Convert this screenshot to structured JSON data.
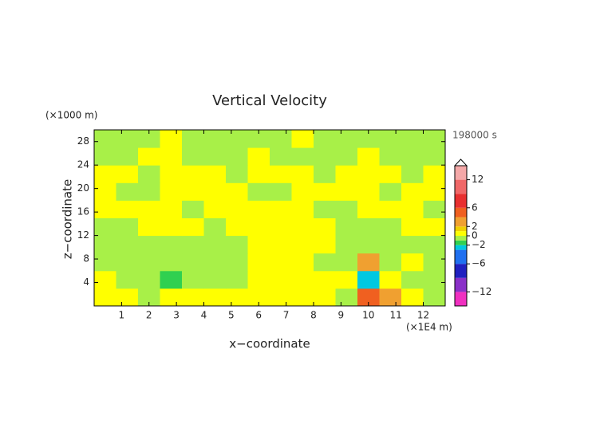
{
  "chart_data": {
    "type": "heatmap",
    "title": "Vertical Velocity",
    "x_label": "x−coordinate",
    "y_label": "z−coordinate",
    "x_unit": "(×1E4 m)",
    "y_unit": "(×1000 m)",
    "time_label": "198000 s",
    "xlim": [
      0,
      12.8
    ],
    "ylim": [
      0,
      30
    ],
    "xticks": [
      1,
      2,
      3,
      4,
      5,
      6,
      7,
      8,
      9,
      10,
      11,
      12
    ],
    "yticks": [
      4,
      8,
      12,
      16,
      20,
      24,
      28
    ],
    "x": [
      0.4,
      1.2,
      2.0,
      2.8,
      3.6,
      4.4,
      5.2,
      6.0,
      6.8,
      7.6,
      8.4,
      9.2,
      10.0,
      10.8,
      11.6,
      12.4
    ],
    "y": [
      1.5,
      4.5,
      7.5,
      10.5,
      13.5,
      16.5,
      19.5,
      22.5,
      25.5,
      28.5
    ],
    "z": [
      [
        0.5,
        0.5,
        -0.5,
        0.5,
        0.5,
        0.5,
        0.5,
        0.5,
        0.5,
        0.5,
        0.5,
        -0.5,
        4,
        2,
        0.5,
        -0.5
      ],
      [
        0.5,
        -0.5,
        -0.5,
        -2,
        -0.5,
        -0.5,
        -0.5,
        0.5,
        0.5,
        0.5,
        0.5,
        0.5,
        -3,
        0.5,
        -0.5,
        -0.5
      ],
      [
        -0.5,
        -0.5,
        -0.5,
        -0.5,
        -0.5,
        -0.5,
        -0.5,
        0.5,
        0.5,
        0.5,
        -0.5,
        -0.5,
        3,
        -0.5,
        0.5,
        -0.5
      ],
      [
        -0.5,
        -0.5,
        -0.5,
        -0.5,
        -0.5,
        -0.5,
        -0.5,
        0.5,
        0.5,
        0.5,
        0.5,
        -0.5,
        -0.5,
        -0.5,
        -0.5,
        -0.5
      ],
      [
        -0.5,
        -0.5,
        0.5,
        0.5,
        0.5,
        -0.5,
        0.5,
        0.5,
        0.5,
        0.5,
        0.5,
        -0.5,
        -0.5,
        -0.5,
        0.5,
        0.5
      ],
      [
        0.5,
        0.5,
        0.5,
        0.5,
        -0.5,
        0.5,
        0.5,
        0.5,
        0.5,
        0.5,
        -0.5,
        -0.5,
        0.5,
        0.5,
        0.5,
        -0.5
      ],
      [
        0.5,
        -0.5,
        -0.5,
        0.5,
        0.5,
        0.5,
        0.5,
        -0.5,
        -0.5,
        0.5,
        0.5,
        0.5,
        0.5,
        -0.5,
        0.5,
        0.5
      ],
      [
        0.5,
        0.5,
        -0.5,
        0.5,
        0.5,
        0.5,
        -0.5,
        0.5,
        0.5,
        0.5,
        -0.5,
        0.5,
        0.5,
        0.5,
        -0.5,
        0.5
      ],
      [
        -0.5,
        -0.5,
        0.5,
        0.5,
        -0.5,
        -0.5,
        -0.5,
        0.5,
        -0.5,
        -0.5,
        -0.5,
        -0.5,
        0.5,
        -0.5,
        -0.5,
        -0.5
      ],
      [
        -0.5,
        -0.5,
        -0.5,
        0.5,
        -0.5,
        -0.5,
        -0.5,
        -0.5,
        -0.5,
        0.5,
        -0.5,
        -0.5,
        -0.5,
        -0.5,
        -0.5,
        -0.5
      ]
    ],
    "colorbar": {
      "bounds": [
        -15,
        -12,
        -9,
        -6,
        -3,
        -2,
        -1,
        0,
        1,
        2,
        4,
        6,
        9,
        12,
        15
      ],
      "colors": [
        "#f030c0",
        "#8a30c8",
        "#2020c0",
        "#2070f0",
        "#00c8e0",
        "#30d050",
        "#a8f048",
        "#ffff00",
        "#f0d000",
        "#f0a030",
        "#f06020",
        "#e83030",
        "#f06868",
        "#f4a8a8"
      ],
      "ticks": [
        {
          "value": -12,
          "label": "−12"
        },
        {
          "value": -6,
          "label": "−6"
        },
        {
          "value": -2,
          "label": "−2"
        },
        0,
        2,
        6,
        12
      ]
    }
  }
}
